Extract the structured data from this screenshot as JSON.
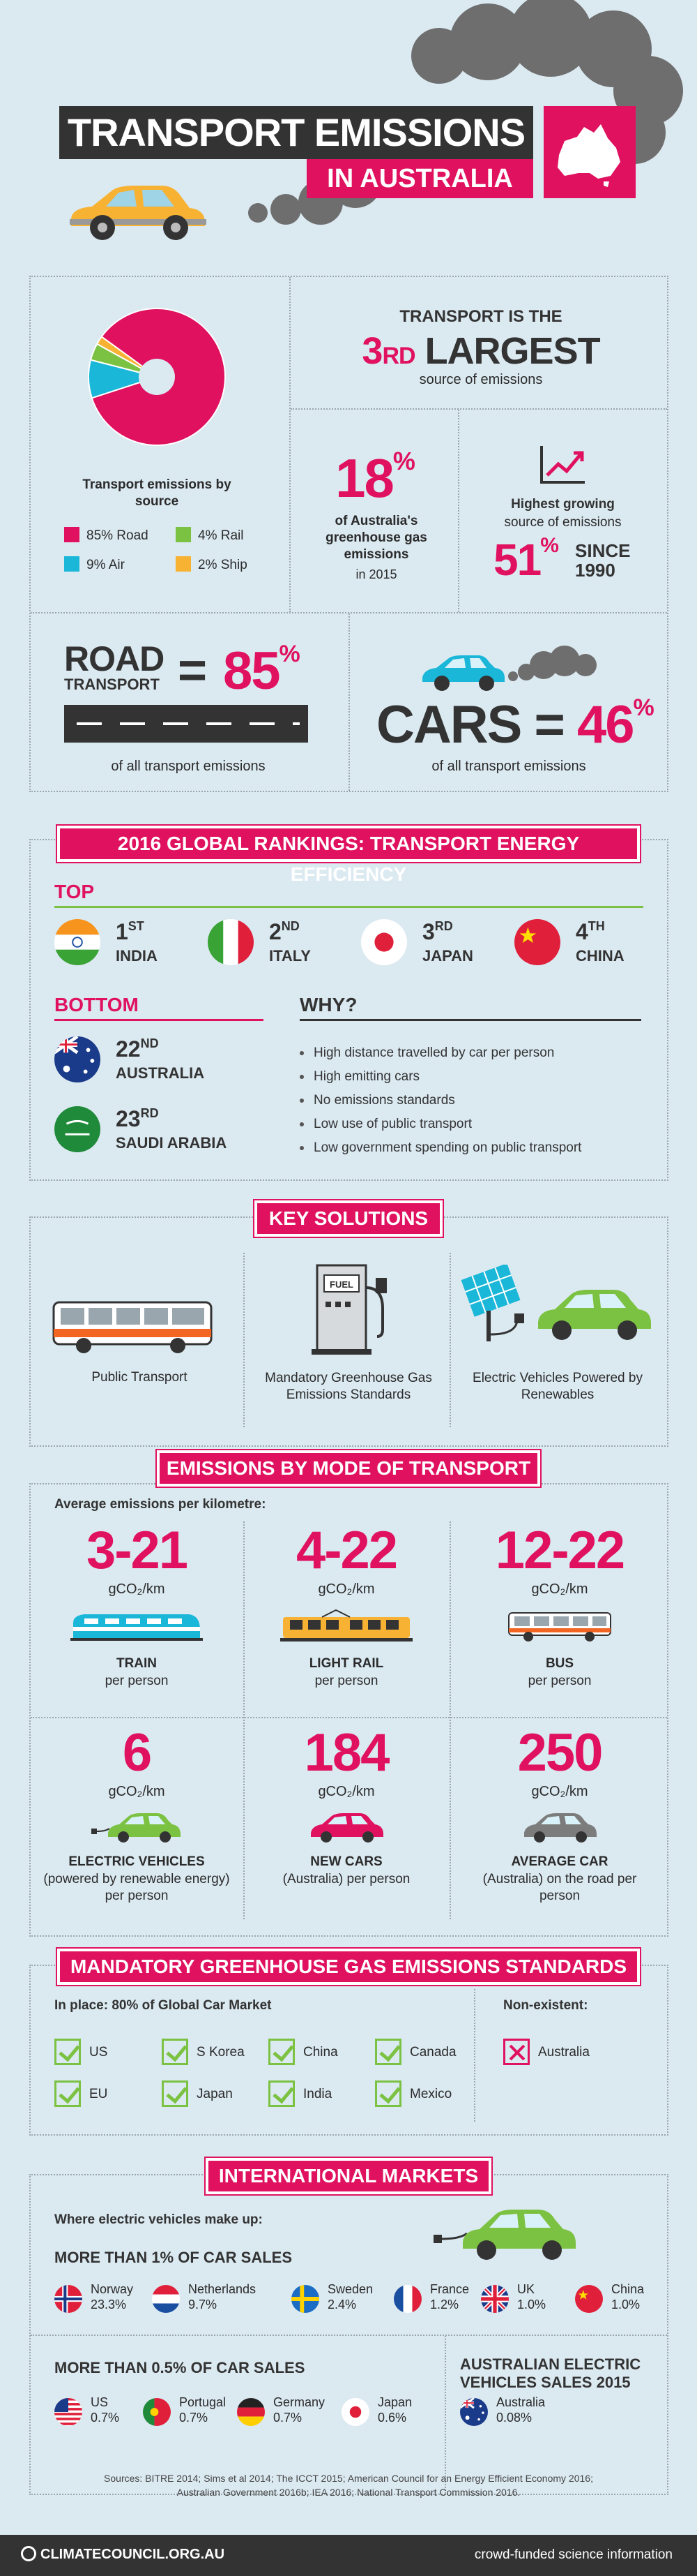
{
  "header": {
    "title_line1": "TRANSPORT EMISSIONS",
    "title_line2": "IN AUSTRALIA"
  },
  "overview": {
    "pie_caption": "Transport emissions by source",
    "legend": [
      {
        "label": "85% Road",
        "color": "#e0115f"
      },
      {
        "label": "4% Rail",
        "color": "#7cc242"
      },
      {
        "label": "9% Air",
        "color": "#1ab7d9"
      },
      {
        "label": "2% Ship",
        "color": "#f7b233"
      }
    ],
    "pie_values": [
      85,
      9,
      4,
      2
    ],
    "third_pre": "TRANSPORT IS THE",
    "third_big": "3",
    "third_sup": "RD",
    "third_post": "LARGEST",
    "third_sub": "source of emissions",
    "pct18": "18",
    "pct_sign": "%",
    "pct18_sub": "of Australia's greenhouse gas emissions",
    "pct18_year": "in 2015",
    "growth_title": "Highest growing",
    "growth_sub": "source of emissions",
    "growth_val": "51",
    "growth_since": "SINCE",
    "growth_year": "1990",
    "road_word": "ROAD",
    "road_word2": "TRANSPORT",
    "road_eq": "=",
    "road_val": "85",
    "road_sub": "of all transport emissions",
    "cars_word": "CARS",
    "cars_eq": "=",
    "cars_val": "46",
    "cars_sub": "of all transport emissions"
  },
  "rankings": {
    "title": "2016 GLOBAL RANKINGS: TRANSPORT ENERGY EFFICIENCY",
    "top_label": "TOP",
    "top": [
      {
        "num": "1",
        "sup": "ST",
        "country": "INDIA"
      },
      {
        "num": "2",
        "sup": "ND",
        "country": "ITALY"
      },
      {
        "num": "3",
        "sup": "RD",
        "country": "JAPAN"
      },
      {
        "num": "4",
        "sup": "TH",
        "country": "CHINA"
      }
    ],
    "bottom_label": "BOTTOM",
    "bottom": [
      {
        "num": "22",
        "sup": "ND",
        "country": "AUSTRALIA"
      },
      {
        "num": "23",
        "sup": "RD",
        "country": "SAUDI ARABIA"
      }
    ],
    "why_label": "WHY?",
    "why": [
      "High distance travelled by car per person",
      "High emitting cars",
      "No emissions standards",
      "Low use of public transport",
      "Low government spending on public transport"
    ]
  },
  "solutions": {
    "title": "KEY SOLUTIONS",
    "items": [
      "Public Transport",
      "Mandatory Greenhouse Gas Emissions Standards",
      "Electric Vehicles Powered by Renewables"
    ],
    "fuel": "FUEL"
  },
  "modes": {
    "title": "EMISSIONS BY MODE OF TRANSPORT",
    "intro": "Average emissions per kilometre:",
    "unit": "gCO₂/km",
    "items": [
      {
        "value": "3-21",
        "name": "TRAIN",
        "sub": "per person"
      },
      {
        "value": "4-22",
        "name": "LIGHT RAIL",
        "sub": "per person"
      },
      {
        "value": "12-22",
        "name": "BUS",
        "sub": "per person"
      },
      {
        "value": "6",
        "name": "ELECTRIC VEHICLES",
        "sub": "(powered by renewable energy) per person"
      },
      {
        "value": "184",
        "name": "NEW CARS",
        "sub": "(Australia) per person"
      },
      {
        "value": "250",
        "name": "AVERAGE CAR",
        "sub": "(Australia) on the road per person"
      }
    ]
  },
  "standards": {
    "title": "MANDATORY GREENHOUSE GAS EMISSIONS STANDARDS",
    "in_place": "In place: 80% of Global Car Market",
    "countries": [
      "US",
      "S Korea",
      "China",
      "Canada",
      "EU",
      "Japan",
      "India",
      "Mexico"
    ],
    "non_label": "Non-existent:",
    "non": "Australia"
  },
  "markets": {
    "title": "INTERNATIONAL MARKETS",
    "intro": "Where electric vehicles make up:",
    "more1": "MORE THAN 1% OF CAR SALES",
    "one": [
      {
        "c": "Norway",
        "v": "23.3%"
      },
      {
        "c": "Netherlands",
        "v": "9.7%"
      },
      {
        "c": "Sweden",
        "v": "2.4%"
      },
      {
        "c": "France",
        "v": "1.2%"
      },
      {
        "c": "UK",
        "v": "1.0%"
      },
      {
        "c": "China",
        "v": "1.0%"
      }
    ],
    "more05": "MORE THAN 0.5% OF CAR SALES",
    "half": [
      {
        "c": "US",
        "v": "0.7%"
      },
      {
        "c": "Portugal",
        "v": "0.7%"
      },
      {
        "c": "Germany",
        "v": "0.7%"
      },
      {
        "c": "Japan",
        "v": "0.6%"
      }
    ],
    "aus_title": "AUSTRALIAN ELECTRIC VEHICLES SALES 2015",
    "aus": {
      "c": "Australia",
      "v": "0.08%"
    }
  },
  "footer": {
    "sources": "Sources: BITRE 2014; Sims et al 2014; The ICCT 2015; American Council for an Energy Efficient Economy 2016; Australian Government 2016b; IEA 2016; National Transport Commission 2016.",
    "logo": "CLIMATECOUNCIL.ORG.AU",
    "tagline": "crowd-funded science information"
  }
}
